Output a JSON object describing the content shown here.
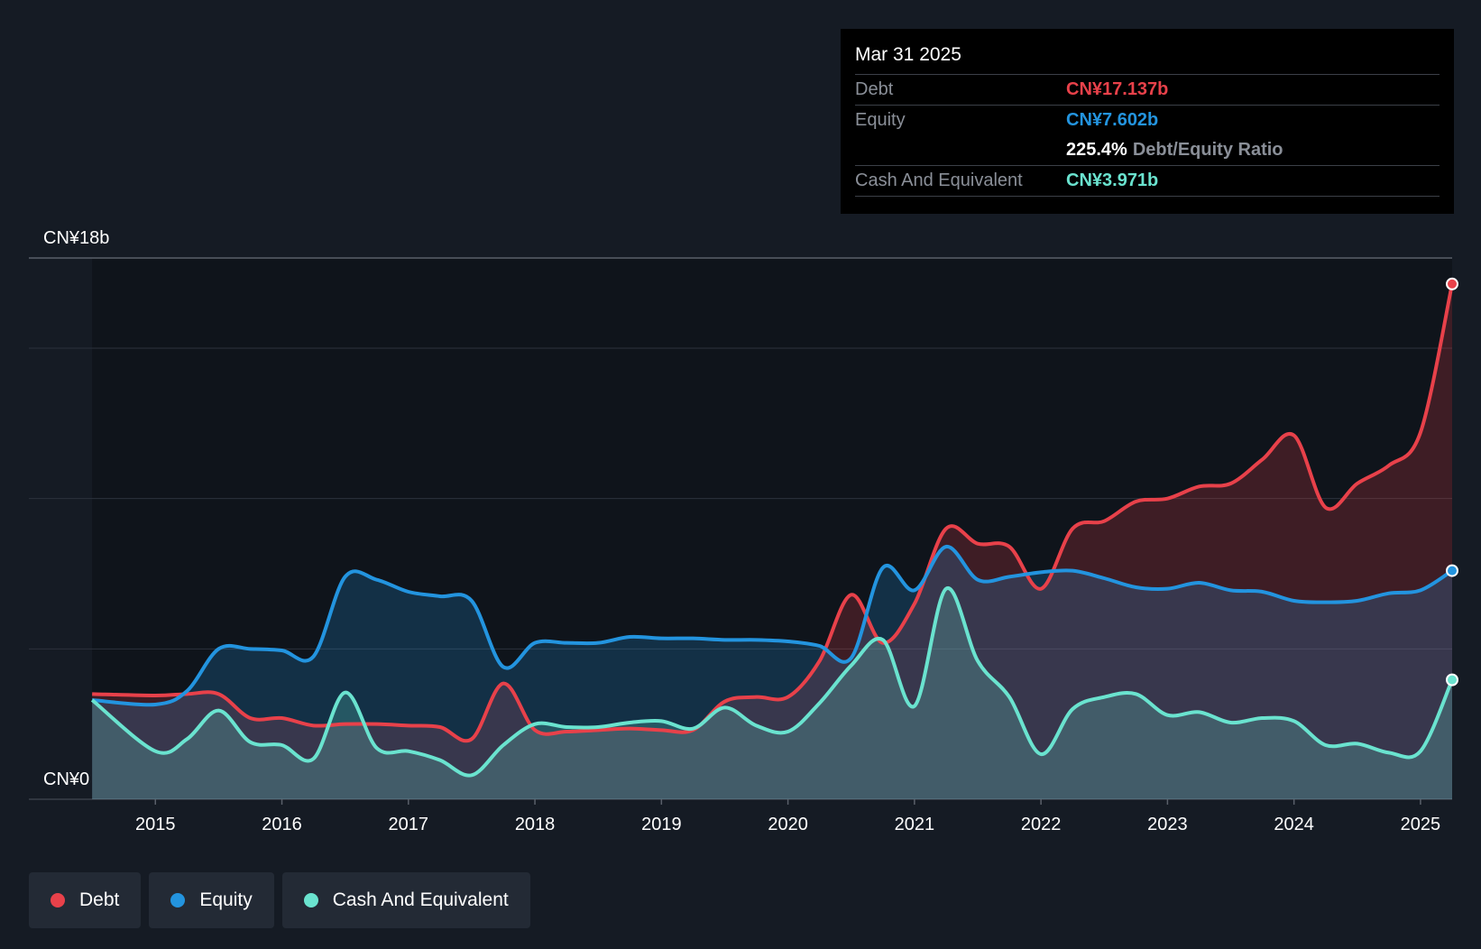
{
  "colors": {
    "debt": "#e8414a",
    "equity": "#2394df",
    "cash": "#6ae3cf",
    "background": "#151b24"
  },
  "tooltip": {
    "date": "Mar 31 2025",
    "debt_label": "Debt",
    "debt_value": "CN¥17.137b",
    "equity_label": "Equity",
    "equity_value": "CN¥7.602b",
    "ratio_value": "225.4%",
    "ratio_label": "Debt/Equity Ratio",
    "cash_label": "Cash And Equivalent",
    "cash_value": "CN¥3.971b"
  },
  "legend": [
    {
      "label": "Debt",
      "color": "#e8414a"
    },
    {
      "label": "Equity",
      "color": "#2394df"
    },
    {
      "label": "Cash And Equivalent",
      "color": "#6ae3cf"
    }
  ],
  "chart_data": {
    "type": "area",
    "y_top_label": "CN¥18b",
    "y_bottom_label": "CN¥0",
    "ylim": [
      0,
      18
    ],
    "xlim": [
      2014.0,
      2025.25
    ],
    "x_ticks": [
      "2015",
      "2016",
      "2017",
      "2018",
      "2019",
      "2020",
      "2021",
      "2022",
      "2023",
      "2024",
      "2025"
    ],
    "grid": true,
    "legend_position": "bottom-left",
    "series": [
      {
        "name": "Debt",
        "x": [
          2014.5,
          2015.0,
          2015.25,
          2015.5,
          2015.75,
          2016.0,
          2016.25,
          2016.5,
          2016.75,
          2017.0,
          2017.25,
          2017.5,
          2017.75,
          2018.0,
          2018.25,
          2018.5,
          2018.75,
          2019.0,
          2019.25,
          2019.5,
          2019.75,
          2020.0,
          2020.25,
          2020.5,
          2020.75,
          2021.0,
          2021.25,
          2021.5,
          2021.75,
          2022.0,
          2022.25,
          2022.5,
          2022.75,
          2023.0,
          2023.25,
          2023.5,
          2023.75,
          2024.0,
          2024.25,
          2024.5,
          2024.75,
          2025.0,
          2025.25
        ],
        "values": [
          3.5,
          3.45,
          3.5,
          3.5,
          2.7,
          2.7,
          2.45,
          2.5,
          2.5,
          2.45,
          2.4,
          2.0,
          3.85,
          2.3,
          2.25,
          2.3,
          2.35,
          2.3,
          2.3,
          3.25,
          3.4,
          3.4,
          4.6,
          6.8,
          5.2,
          6.5,
          9.0,
          8.5,
          8.4,
          7.0,
          9.0,
          9.25,
          9.9,
          10.0,
          10.4,
          10.5,
          11.3,
          12.1,
          9.7,
          10.5,
          11.1,
          12.2,
          17.137
        ]
      },
      {
        "name": "Equity",
        "x": [
          2014.5,
          2015.0,
          2015.25,
          2015.5,
          2015.75,
          2016.0,
          2016.25,
          2016.5,
          2016.75,
          2017.0,
          2017.25,
          2017.5,
          2017.75,
          2018.0,
          2018.25,
          2018.5,
          2018.75,
          2019.0,
          2019.25,
          2019.5,
          2019.75,
          2020.0,
          2020.25,
          2020.5,
          2020.75,
          2021.0,
          2021.25,
          2021.5,
          2021.75,
          2022.0,
          2022.25,
          2022.5,
          2022.75,
          2023.0,
          2023.25,
          2023.5,
          2023.75,
          2024.0,
          2024.25,
          2024.5,
          2024.75,
          2025.0,
          2025.25
        ],
        "values": [
          3.3,
          3.15,
          3.6,
          5.0,
          5.0,
          4.95,
          4.75,
          7.4,
          7.3,
          6.9,
          6.75,
          6.6,
          4.4,
          5.2,
          5.2,
          5.2,
          5.4,
          5.35,
          5.35,
          5.3,
          5.3,
          5.25,
          5.1,
          4.7,
          7.7,
          6.95,
          8.4,
          7.3,
          7.4,
          7.55,
          7.6,
          7.35,
          7.05,
          7.0,
          7.2,
          6.95,
          6.9,
          6.6,
          6.55,
          6.6,
          6.85,
          6.95,
          7.602
        ]
      },
      {
        "name": "Cash And Equivalent",
        "x": [
          2014.5,
          2015.0,
          2015.25,
          2015.5,
          2015.75,
          2016.0,
          2016.25,
          2016.5,
          2016.75,
          2017.0,
          2017.25,
          2017.5,
          2017.75,
          2018.0,
          2018.25,
          2018.5,
          2018.75,
          2019.0,
          2019.25,
          2019.5,
          2019.75,
          2020.0,
          2020.25,
          2020.5,
          2020.75,
          2021.0,
          2021.25,
          2021.5,
          2021.75,
          2022.0,
          2022.25,
          2022.5,
          2022.75,
          2023.0,
          2023.25,
          2023.5,
          2023.75,
          2024.0,
          2024.25,
          2024.5,
          2024.75,
          2025.0,
          2025.25
        ],
        "values": [
          3.3,
          1.6,
          2.0,
          2.95,
          1.9,
          1.8,
          1.35,
          3.55,
          1.7,
          1.6,
          1.3,
          0.8,
          1.8,
          2.5,
          2.4,
          2.4,
          2.55,
          2.6,
          2.35,
          3.05,
          2.45,
          2.25,
          3.2,
          4.45,
          5.3,
          3.1,
          7.0,
          4.6,
          3.4,
          1.5,
          3.0,
          3.4,
          3.5,
          2.8,
          2.9,
          2.55,
          2.7,
          2.6,
          1.8,
          1.85,
          1.55,
          1.6,
          3.971
        ]
      }
    ]
  }
}
